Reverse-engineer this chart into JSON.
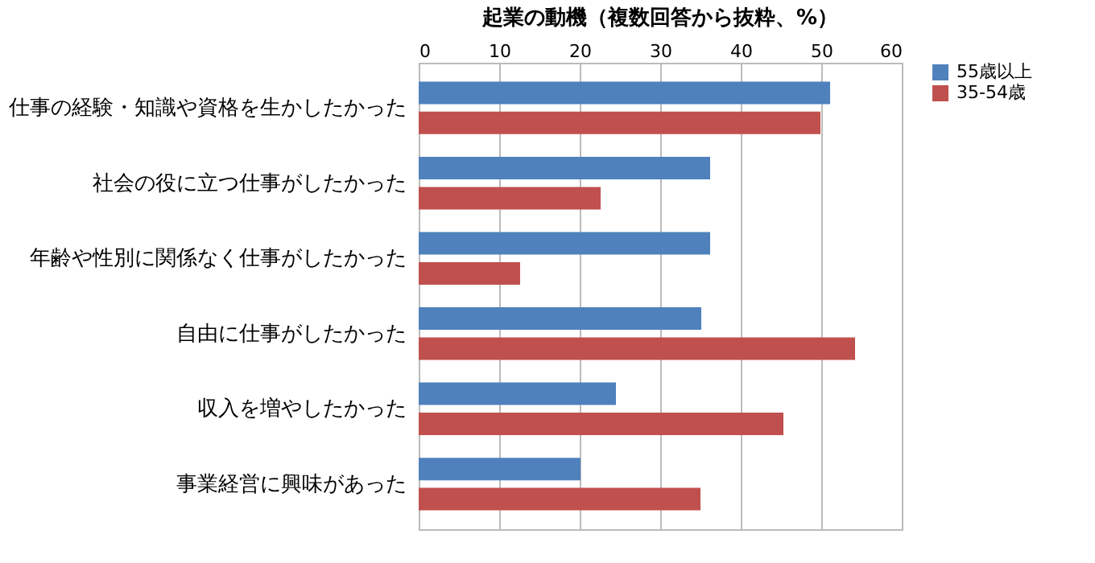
{
  "chart_data": {
    "type": "bar",
    "orientation": "horizontal",
    "title": "起業の動機（複数回答から抜粋、%）",
    "categories": [
      "仕事の経験・知識や資格を生かしたかった",
      "社会の役に立つ仕事がしたかった",
      "年齢や性別に関係なく仕事がしたかった",
      "自由に仕事がしたかった",
      "収入を増やしたかった",
      "事業経営に興味があった"
    ],
    "series": [
      {
        "name": "55歳以上",
        "color": "#4f81bd",
        "values": [
          51.1,
          36.2,
          36.2,
          35.1,
          24.5,
          20.1
        ]
      },
      {
        "name": "35-54歳",
        "color": "#c0504d",
        "values": [
          49.9,
          22.6,
          12.6,
          54.2,
          45.3,
          35.0
        ]
      }
    ],
    "xlim": [
      0,
      60
    ],
    "xticks": [
      0,
      10,
      20,
      30,
      40,
      50,
      60
    ],
    "grid": "x",
    "legend": "right"
  }
}
